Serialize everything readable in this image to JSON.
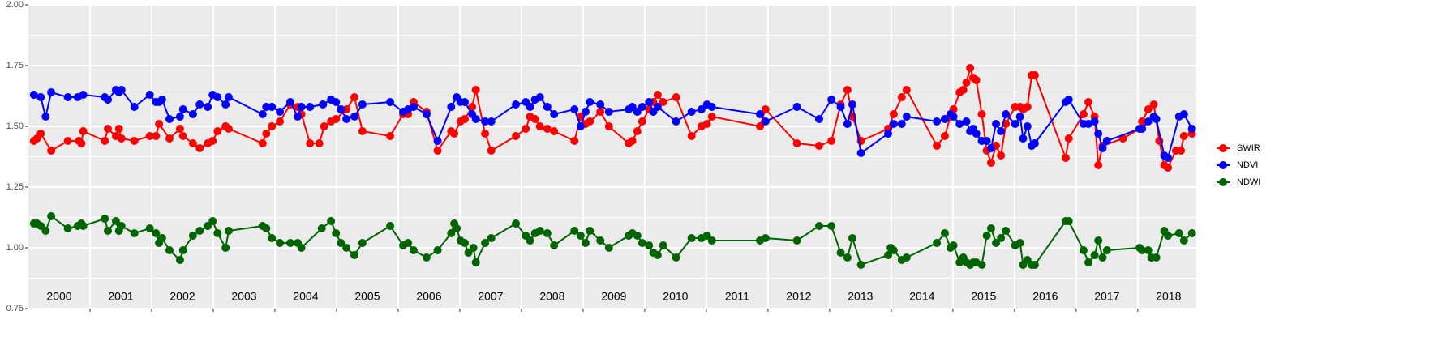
{
  "chart_data": {
    "type": "line",
    "xlim": [
      2000.0,
      2018.95
    ],
    "xticks": [
      2001,
      2002,
      2003,
      2004,
      2005,
      2006,
      2007,
      2008,
      2009,
      2010,
      2011,
      2012,
      2013,
      2014,
      2015,
      2016,
      2017,
      2018
    ],
    "year_labels": [
      "2000",
      "2001",
      "2002",
      "2003",
      "2004",
      "2005",
      "2006",
      "2007",
      "2008",
      "2009",
      "2010",
      "2011",
      "2012",
      "2013",
      "2014",
      "2015",
      "2016",
      "2017",
      "2018"
    ],
    "ylim": [
      0.75,
      2.0
    ],
    "yticks": [
      {
        "value": 0.75,
        "label": "0.75"
      },
      {
        "value": 1.0,
        "label": "1.00"
      },
      {
        "value": 1.25,
        "label": "1.25"
      },
      {
        "value": 1.5,
        "label": "1.50"
      },
      {
        "value": 1.75,
        "label": "1.75"
      },
      {
        "value": 2.0,
        "label": "2.00"
      }
    ],
    "yminor": [
      0.875,
      1.125,
      1.375,
      1.625,
      1.875
    ],
    "grid": true,
    "legend": "right",
    "series": [
      {
        "name": "SWIR",
        "color": "#ff0000",
        "x": [
          2000.09,
          2000.14,
          2000.2,
          2000.37,
          2000.64,
          2000.82,
          2000.86,
          2000.89,
          2001.24,
          2001.29,
          2001.42,
          2001.47,
          2001.51,
          2001.72,
          2001.97,
          2002.07,
          2002.12,
          2002.29,
          2002.46,
          2002.51,
          2002.67,
          2002.78,
          2002.91,
          2002.99,
          2003.07,
          2003.2,
          2003.25,
          2003.8,
          2003.86,
          2003.95,
          2004.08,
          2004.25,
          2004.37,
          2004.43,
          2004.57,
          2004.72,
          2004.8,
          2004.91,
          2004.99,
          2005.16,
          2005.29,
          2005.42,
          2005.87,
          2006.08,
          2006.16,
          2006.25,
          2006.46,
          2006.64,
          2006.86,
          2006.91,
          2007.01,
          2007.08,
          2007.2,
          2007.26,
          2007.41,
          2007.51,
          2007.91,
          2008.07,
          2008.14,
          2008.22,
          2008.3,
          2008.42,
          2008.53,
          2008.86,
          2008.96,
          2009.04,
          2009.11,
          2009.28,
          2009.42,
          2009.74,
          2009.8,
          2009.88,
          2009.96,
          2010.07,
          2010.14,
          2010.21,
          2010.3,
          2010.51,
          2010.76,
          2010.92,
          2011.01,
          2011.09,
          2011.87,
          2011.96,
          2012.47,
          2012.83,
          2013.03,
          2013.18,
          2013.29,
          2013.37,
          2013.51,
          2013.95,
          2014.04,
          2014.17,
          2014.25,
          2014.74,
          2014.87,
          2014.96,
          2015.01,
          2015.11,
          2015.17,
          2015.22,
          2015.28,
          2015.33,
          2015.38,
          2015.47,
          2015.55,
          2015.62,
          2015.7,
          2015.78,
          2015.86,
          2016.01,
          2016.09,
          2016.14,
          2016.21,
          2016.28,
          2016.33,
          2016.83,
          2016.88,
          2017.12,
          2017.2,
          2017.3,
          2017.36,
          2017.43,
          2017.76,
          2018.03,
          2018.07,
          2018.17,
          2018.26,
          2018.35,
          2018.43,
          2018.49,
          2018.62,
          2018.7,
          2018.75,
          2018.88
        ],
        "values": [
          1.44,
          1.45,
          1.47,
          1.4,
          1.44,
          1.44,
          1.43,
          1.48,
          1.44,
          1.49,
          1.46,
          1.49,
          1.45,
          1.44,
          1.46,
          1.46,
          1.51,
          1.45,
          1.49,
          1.46,
          1.43,
          1.41,
          1.43,
          1.44,
          1.48,
          1.5,
          1.49,
          1.43,
          1.47,
          1.5,
          1.52,
          1.59,
          1.58,
          1.55,
          1.43,
          1.43,
          1.5,
          1.52,
          1.53,
          1.57,
          1.62,
          1.48,
          1.46,
          1.55,
          1.55,
          1.6,
          1.56,
          1.4,
          1.48,
          1.47,
          1.52,
          1.53,
          1.58,
          1.65,
          1.47,
          1.4,
          1.46,
          1.49,
          1.54,
          1.53,
          1.5,
          1.49,
          1.48,
          1.44,
          1.54,
          1.51,
          1.52,
          1.56,
          1.5,
          1.43,
          1.44,
          1.48,
          1.52,
          1.57,
          1.6,
          1.63,
          1.6,
          1.62,
          1.46,
          1.5,
          1.51,
          1.54,
          1.5,
          1.57,
          1.43,
          1.42,
          1.44,
          1.59,
          1.65,
          1.54,
          1.44,
          1.49,
          1.55,
          1.62,
          1.65,
          1.42,
          1.46,
          1.54,
          1.57,
          1.64,
          1.65,
          1.68,
          1.74,
          1.7,
          1.69,
          1.55,
          1.4,
          1.35,
          1.42,
          1.38,
          1.51,
          1.58,
          1.58,
          1.57,
          1.58,
          1.71,
          1.71,
          1.37,
          1.45,
          1.55,
          1.6,
          1.54,
          1.34,
          1.42,
          1.45,
          1.49,
          1.52,
          1.57,
          1.59,
          1.44,
          1.34,
          1.33,
          1.4,
          1.4,
          1.46,
          1.47
        ]
      },
      {
        "name": "NDVI",
        "color": "#0000ff",
        "x": [
          2000.09,
          2000.2,
          2000.28,
          2000.37,
          2000.64,
          2000.8,
          2000.89,
          2001.24,
          2001.29,
          2001.42,
          2001.47,
          2001.51,
          2001.72,
          2001.97,
          2002.07,
          2002.12,
          2002.17,
          2002.29,
          2002.46,
          2002.51,
          2002.67,
          2002.78,
          2002.91,
          2002.99,
          2003.07,
          2003.2,
          2003.25,
          2003.8,
          2003.86,
          2003.95,
          2004.08,
          2004.25,
          2004.37,
          2004.43,
          2004.57,
          2004.78,
          2004.91,
          2004.99,
          2005.07,
          2005.16,
          2005.29,
          2005.42,
          2005.87,
          2006.08,
          2006.16,
          2006.25,
          2006.46,
          2006.64,
          2006.86,
          2006.95,
          2007.01,
          2007.08,
          2007.2,
          2007.26,
          2007.41,
          2007.51,
          2007.91,
          2008.07,
          2008.14,
          2008.22,
          2008.3,
          2008.42,
          2008.53,
          2008.86,
          2008.96,
          2009.04,
          2009.11,
          2009.28,
          2009.42,
          2009.74,
          2009.8,
          2009.88,
          2009.96,
          2010.07,
          2010.14,
          2010.21,
          2010.51,
          2010.76,
          2010.92,
          2011.01,
          2011.09,
          2011.87,
          2011.96,
          2012.47,
          2012.83,
          2013.03,
          2013.18,
          2013.29,
          2013.37,
          2013.51,
          2013.95,
          2014.04,
          2014.17,
          2014.25,
          2014.74,
          2014.87,
          2014.96,
          2015.01,
          2015.11,
          2015.22,
          2015.28,
          2015.33,
          2015.38,
          2015.47,
          2015.55,
          2015.62,
          2015.7,
          2015.78,
          2015.86,
          2016.01,
          2016.09,
          2016.14,
          2016.21,
          2016.28,
          2016.33,
          2016.83,
          2016.88,
          2017.12,
          2017.2,
          2017.3,
          2017.36,
          2017.43,
          2017.5,
          2018.03,
          2018.07,
          2018.17,
          2018.26,
          2018.3,
          2018.43,
          2018.49,
          2018.67,
          2018.75,
          2018.88
        ],
        "values": [
          1.63,
          1.62,
          1.54,
          1.64,
          1.62,
          1.62,
          1.63,
          1.62,
          1.61,
          1.65,
          1.64,
          1.65,
          1.58,
          1.63,
          1.6,
          1.6,
          1.61,
          1.53,
          1.54,
          1.57,
          1.55,
          1.59,
          1.58,
          1.63,
          1.62,
          1.59,
          1.62,
          1.55,
          1.58,
          1.58,
          1.56,
          1.6,
          1.54,
          1.58,
          1.58,
          1.59,
          1.61,
          1.6,
          1.57,
          1.53,
          1.54,
          1.59,
          1.6,
          1.56,
          1.57,
          1.58,
          1.55,
          1.44,
          1.58,
          1.62,
          1.6,
          1.6,
          1.55,
          1.53,
          1.52,
          1.52,
          1.59,
          1.6,
          1.58,
          1.61,
          1.62,
          1.58,
          1.55,
          1.57,
          1.5,
          1.56,
          1.6,
          1.59,
          1.56,
          1.57,
          1.58,
          1.56,
          1.58,
          1.6,
          1.56,
          1.58,
          1.52,
          1.56,
          1.57,
          1.59,
          1.58,
          1.55,
          1.52,
          1.58,
          1.53,
          1.61,
          1.58,
          1.51,
          1.59,
          1.39,
          1.47,
          1.51,
          1.51,
          1.54,
          1.52,
          1.53,
          1.55,
          1.54,
          1.51,
          1.52,
          1.48,
          1.49,
          1.47,
          1.44,
          1.44,
          1.41,
          1.51,
          1.48,
          1.55,
          1.51,
          1.54,
          1.45,
          1.5,
          1.42,
          1.43,
          1.6,
          1.61,
          1.51,
          1.51,
          1.52,
          1.47,
          1.41,
          1.44,
          1.49,
          1.49,
          1.52,
          1.54,
          1.53,
          1.38,
          1.37,
          1.54,
          1.55,
          1.49
        ]
      },
      {
        "name": "NDWI",
        "color": "#006400",
        "x": [
          2000.09,
          2000.14,
          2000.2,
          2000.28,
          2000.37,
          2000.64,
          2000.8,
          2000.86,
          2000.89,
          2001.24,
          2001.29,
          2001.42,
          2001.47,
          2001.51,
          2001.72,
          2001.97,
          2002.07,
          2002.12,
          2002.17,
          2002.29,
          2002.46,
          2002.51,
          2002.67,
          2002.78,
          2002.91,
          2002.99,
          2003.07,
          2003.2,
          2003.25,
          2003.8,
          2003.86,
          2003.95,
          2004.08,
          2004.25,
          2004.37,
          2004.43,
          2004.76,
          2004.91,
          2004.99,
          2005.07,
          2005.16,
          2005.29,
          2005.42,
          2005.87,
          2006.08,
          2006.16,
          2006.25,
          2006.46,
          2006.64,
          2006.86,
          2006.91,
          2006.95,
          2007.01,
          2007.08,
          2007.14,
          2007.22,
          2007.26,
          2007.41,
          2007.51,
          2007.91,
          2008.07,
          2008.14,
          2008.22,
          2008.3,
          2008.42,
          2008.53,
          2008.86,
          2008.96,
          2009.04,
          2009.11,
          2009.28,
          2009.42,
          2009.74,
          2009.8,
          2009.88,
          2009.96,
          2010.07,
          2010.14,
          2010.21,
          2010.3,
          2010.51,
          2010.76,
          2010.92,
          2011.01,
          2011.09,
          2011.87,
          2011.96,
          2012.47,
          2012.83,
          2013.03,
          2013.18,
          2013.29,
          2013.37,
          2013.51,
          2013.95,
          2013.99,
          2014.04,
          2014.17,
          2014.25,
          2014.74,
          2014.87,
          2014.96,
          2015.01,
          2015.11,
          2015.17,
          2015.22,
          2015.28,
          2015.33,
          2015.38,
          2015.47,
          2015.55,
          2015.62,
          2015.7,
          2015.78,
          2015.86,
          2016.01,
          2016.09,
          2016.14,
          2016.21,
          2016.28,
          2016.33,
          2016.83,
          2016.88,
          2017.12,
          2017.2,
          2017.3,
          2017.36,
          2017.43,
          2017.5,
          2018.03,
          2018.07,
          2018.17,
          2018.22,
          2018.3,
          2018.43,
          2018.49,
          2018.67,
          2018.75,
          2018.88
        ],
        "values": [
          1.1,
          1.1,
          1.09,
          1.07,
          1.13,
          1.08,
          1.09,
          1.1,
          1.09,
          1.12,
          1.07,
          1.11,
          1.07,
          1.09,
          1.06,
          1.08,
          1.06,
          1.02,
          1.04,
          0.99,
          0.95,
          0.99,
          1.05,
          1.07,
          1.09,
          1.11,
          1.06,
          1.0,
          1.07,
          1.09,
          1.08,
          1.04,
          1.02,
          1.02,
          1.02,
          1.0,
          1.08,
          1.11,
          1.06,
          1.02,
          1.0,
          0.97,
          1.02,
          1.09,
          1.01,
          1.02,
          0.99,
          0.96,
          0.99,
          1.06,
          1.1,
          1.08,
          1.03,
          1.02,
          0.98,
          1.0,
          0.94,
          1.02,
          1.04,
          1.1,
          1.05,
          1.03,
          1.06,
          1.07,
          1.06,
          1.01,
          1.07,
          1.05,
          1.02,
          1.07,
          1.03,
          1.0,
          1.05,
          1.06,
          1.05,
          1.02,
          1.01,
          0.98,
          0.97,
          1.01,
          0.96,
          1.04,
          1.04,
          1.05,
          1.03,
          1.03,
          1.04,
          1.03,
          1.09,
          1.09,
          0.98,
          0.96,
          1.04,
          0.93,
          0.97,
          1.0,
          0.99,
          0.95,
          0.96,
          1.02,
          1.06,
          1.0,
          1.01,
          0.94,
          0.96,
          0.94,
          0.93,
          0.94,
          0.94,
          0.93,
          1.05,
          1.08,
          1.02,
          1.04,
          1.07,
          1.01,
          1.02,
          0.93,
          0.95,
          0.93,
          0.93,
          1.11,
          1.11,
          0.99,
          0.94,
          0.97,
          1.03,
          0.96,
          0.99,
          1.0,
          0.99,
          0.99,
          0.96,
          0.96,
          1.07,
          1.05,
          1.06,
          1.03,
          1.06
        ]
      }
    ]
  }
}
